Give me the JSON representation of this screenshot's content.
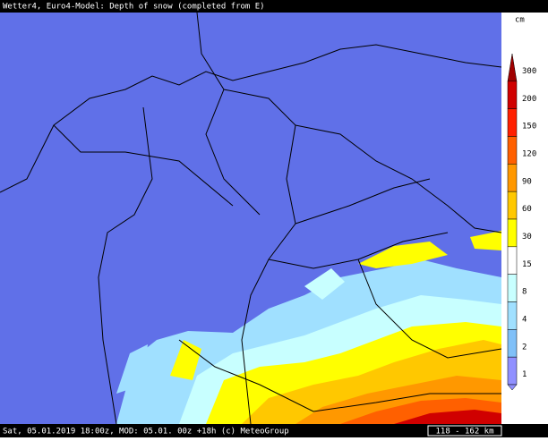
{
  "header": {
    "title": "Wetter4, Euro4-Model: Depth of snow (completed from E)"
  },
  "legend": {
    "unit": "cm",
    "items": [
      {
        "label": "300",
        "color": "#a00000"
      },
      {
        "label": "200",
        "color": "#d00000"
      },
      {
        "label": "150",
        "color": "#ff2000"
      },
      {
        "label": "120",
        "color": "#ff6000"
      },
      {
        "label": "90",
        "color": "#ff9800"
      },
      {
        "label": "60",
        "color": "#ffc800"
      },
      {
        "label": "30",
        "color": "#ffff00"
      },
      {
        "label": "15",
        "color": "#ffffff"
      },
      {
        "label": "8",
        "color": "#c8ffff"
      },
      {
        "label": "4",
        "color": "#a0e0ff"
      },
      {
        "label": "2",
        "color": "#80c0f8"
      },
      {
        "label": "1",
        "color": "#9090ff"
      }
    ]
  },
  "footer": {
    "text": "Sat, 05.01.2019 18:00z, MOD: 05.01. 00z +18h (c) MeteoGroup",
    "scale": "118 - 162 km"
  }
}
